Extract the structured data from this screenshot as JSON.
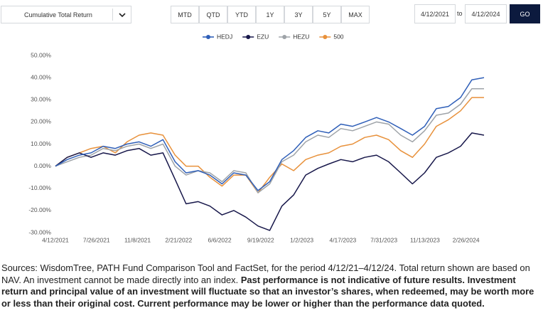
{
  "controls": {
    "metric": "Cumulative Total Return",
    "ranges": [
      "MTD",
      "QTD",
      "YTD",
      "1Y",
      "3Y",
      "5Y",
      "MAX"
    ],
    "start_date": "4/12/2021",
    "to": "to",
    "end_date": "4/12/2024",
    "go": "GO"
  },
  "chart_data": {
    "type": "line",
    "x": [
      "4/12/2021",
      "5/12/2021",
      "6/12/2021",
      "7/12/2021",
      "8/12/2021",
      "9/12/2021",
      "10/12/2021",
      "11/12/2021",
      "12/12/2021",
      "1/12/2022",
      "2/12/2022",
      "3/12/2022",
      "4/12/2022",
      "5/12/2022",
      "6/12/2022",
      "7/12/2022",
      "8/12/2022",
      "9/12/2022",
      "10/12/2022",
      "11/12/2022",
      "12/12/2022",
      "1/12/2023",
      "2/12/2023",
      "3/12/2023",
      "4/12/2023",
      "5/12/2023",
      "6/12/2023",
      "7/12/2023",
      "8/12/2023",
      "9/12/2023",
      "10/12/2023",
      "11/12/2023",
      "12/12/2023",
      "1/12/2024",
      "2/12/2024",
      "3/12/2024",
      "4/12/2024"
    ],
    "series": [
      {
        "name": "HEDJ",
        "color": "#2f5fb8",
        "values": [
          0,
          3,
          5,
          6,
          9,
          8,
          10,
          11,
          9,
          12,
          2,
          -3,
          -2,
          -4,
          -8,
          -3,
          -4,
          -11,
          -7,
          3,
          7,
          13,
          16,
          15,
          19,
          18,
          20,
          22,
          20,
          17,
          14,
          18,
          26,
          27,
          31,
          39,
          40
        ]
      },
      {
        "name": "EZU",
        "color": "#17174a",
        "values": [
          0,
          4,
          6,
          4,
          6,
          5,
          7,
          8,
          5,
          6,
          -6,
          -17,
          -16,
          -18,
          -22,
          -20,
          -23,
          -27,
          -29,
          -18,
          -13,
          -4,
          -1,
          1,
          3,
          2,
          4,
          5,
          2,
          -3,
          -8,
          -3,
          4,
          6,
          9,
          15,
          14
        ]
      },
      {
        "name": "HEZU",
        "color": "#9ea3a8",
        "values": [
          0,
          2,
          4,
          5,
          8,
          7,
          9,
          10,
          8,
          10,
          0,
          -4,
          -2,
          -3,
          -7,
          -2,
          -3,
          -12,
          -8,
          2,
          5,
          11,
          14,
          13,
          17,
          16,
          18,
          20,
          19,
          14,
          11,
          16,
          23,
          24,
          28,
          35,
          35
        ]
      },
      {
        "name": "500",
        "color": "#e8913b",
        "values": [
          0,
          4,
          6,
          8,
          9,
          6,
          11,
          14,
          15,
          14,
          5,
          0,
          0,
          -5,
          -9,
          -4,
          -4,
          -12,
          -5,
          1,
          -2,
          3,
          5,
          6,
          9,
          10,
          13,
          14,
          12,
          7,
          4,
          10,
          18,
          21,
          25,
          31,
          31
        ]
      }
    ],
    "xlim": [
      "4/12/2021",
      "4/12/2024"
    ],
    "xticks": [
      "4/12/2021",
      "7/26/2021",
      "11/8/2021",
      "2/21/2022",
      "6/6/2022",
      "9/19/2022",
      "1/2/2023",
      "4/17/2023",
      "7/31/2023",
      "11/13/2023",
      "2/26/2024"
    ],
    "ylim": [
      -30,
      50
    ],
    "yticks": [
      {
        "value": 50,
        "label": "50.00%"
      },
      {
        "value": 40,
        "label": "40.00%"
      },
      {
        "value": 30,
        "label": "30.00%"
      },
      {
        "value": 20,
        "label": "20.00%"
      },
      {
        "value": 10,
        "label": "10.00%"
      },
      {
        "value": 0,
        "label": "0.00%"
      },
      {
        "value": -10,
        "label": "-10.00%"
      },
      {
        "value": -20,
        "label": "-20.00%"
      },
      {
        "value": -30,
        "label": "-30.00%"
      }
    ],
    "grid": false,
    "legend": "top"
  },
  "footnote": {
    "normal": "Sources: WisdomTree, PATH Fund Comparison Tool and FactSet, for the period 4/12/21–4/12/24. Total return shown are based on NAV. An investment cannot be made directly into an index.",
    "bold": "Past performance is not indicative of future results. Investment return and principal value of an investment will fluctuate so that an investor’s shares, when redeemed, may be worth more or less than their original cost. Current performance may be lower or higher than the performance data quoted."
  }
}
